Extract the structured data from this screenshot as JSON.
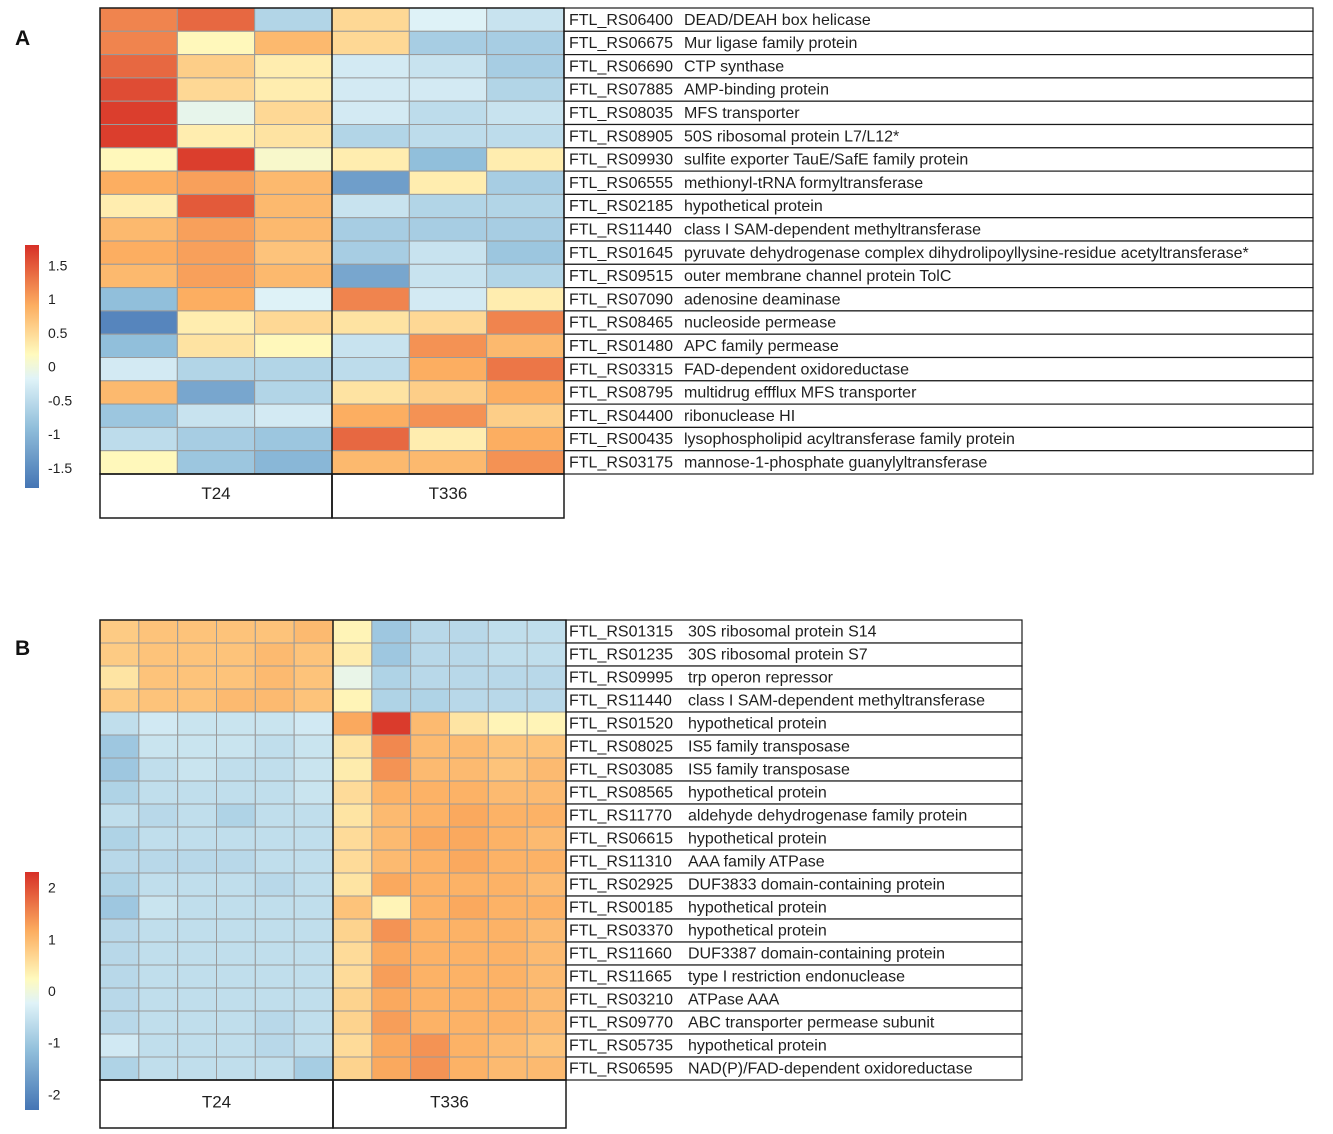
{
  "chart_data": [
    {
      "type": "heatmap",
      "panel": "A",
      "groups": [
        "T24",
        "T336"
      ],
      "replicates_per_group": 3,
      "colorbar": {
        "ticks": [
          1.5,
          1,
          0.5,
          0,
          -0.5,
          -1,
          -1.5
        ],
        "tick_labels": [
          "1.5",
          "1",
          "0.5",
          "0",
          "-0.5",
          "-1",
          "-1.5"
        ],
        "range": [
          -1.8,
          1.8
        ]
      },
      "rows": [
        {
          "id": "FTL_RS06400",
          "desc": "DEAD/DEAH box helicase",
          "values": [
            1.2,
            1.4,
            -0.6,
            0.5,
            -0.2,
            -0.4
          ]
        },
        {
          "id": "FTL_RS06675",
          "desc": "Mur ligase family protein",
          "values": [
            1.2,
            0.2,
            0.8,
            0.5,
            -0.7,
            -0.7
          ]
        },
        {
          "id": "FTL_RS06690",
          "desc": "CTP synthase",
          "values": [
            1.4,
            0.6,
            0.3,
            -0.3,
            -0.4,
            -0.7
          ]
        },
        {
          "id": "FTL_RS07885",
          "desc": "AMP-binding protein",
          "values": [
            1.6,
            0.5,
            0.3,
            -0.3,
            -0.3,
            -0.6
          ]
        },
        {
          "id": "FTL_RS08035",
          "desc": "MFS transporter",
          "values": [
            1.7,
            -0.1,
            0.5,
            -0.3,
            -0.5,
            -0.4
          ]
        },
        {
          "id": "FTL_RS08905",
          "desc": "50S ribosomal protein L7/L12*",
          "values": [
            1.7,
            0.3,
            0.4,
            -0.6,
            -0.5,
            -0.5
          ]
        },
        {
          "id": "FTL_RS09930",
          "desc": "sulfite exporter TauE/SafE family protein",
          "values": [
            0.2,
            1.7,
            0.1,
            0.3,
            -0.9,
            0.3
          ]
        },
        {
          "id": "FTL_RS06555",
          "desc": "methionyl-tRNA formyltransferase",
          "values": [
            0.9,
            1.0,
            0.8,
            -1.3,
            0.3,
            -0.7
          ]
        },
        {
          "id": "FTL_RS02185",
          "desc": "hypothetical protein",
          "values": [
            0.3,
            1.5,
            0.8,
            -0.4,
            -0.6,
            -0.6
          ]
        },
        {
          "id": "FTL_RS11440",
          "desc": "class I SAM-dependent methyltransferase",
          "values": [
            0.8,
            1.0,
            0.8,
            -0.7,
            -0.7,
            -0.7
          ]
        },
        {
          "id": "FTL_RS01645",
          "desc": "pyruvate dehydrogenase complex dihydrolipoyllysine-residue acetyltransferase*",
          "values": [
            0.9,
            1.0,
            0.7,
            -0.7,
            -0.4,
            -0.8
          ]
        },
        {
          "id": "FTL_RS09515",
          "desc": "outer membrane channel protein TolC",
          "values": [
            0.8,
            1.0,
            0.8,
            -1.2,
            -0.4,
            -0.6
          ]
        },
        {
          "id": "FTL_RS07090",
          "desc": "adenosine deaminase",
          "values": [
            -0.9,
            0.9,
            -0.2,
            1.2,
            -0.3,
            0.3
          ]
        },
        {
          "id": "FTL_RS08465",
          "desc": "nucleoside permease",
          "values": [
            -1.6,
            0.3,
            0.5,
            0.4,
            0.5,
            1.2
          ]
        },
        {
          "id": "FTL_RS01480",
          "desc": "APC family permease",
          "values": [
            -0.9,
            0.4,
            0.2,
            -0.4,
            1.1,
            0.8
          ]
        },
        {
          "id": "FTL_RS03315",
          "desc": "FAD-dependent oxidoreductase",
          "values": [
            -0.3,
            -0.6,
            -0.6,
            -0.5,
            0.9,
            1.3
          ]
        },
        {
          "id": "FTL_RS08795",
          "desc": "multidrug effflux MFS transporter",
          "values": [
            0.8,
            -1.2,
            -0.6,
            0.4,
            0.6,
            0.9
          ]
        },
        {
          "id": "FTL_RS04400",
          "desc": "ribonuclease HI",
          "values": [
            -0.8,
            -0.4,
            -0.3,
            0.9,
            1.1,
            0.6
          ]
        },
        {
          "id": "FTL_RS00435",
          "desc": "lysophospholipid acyltransferase family protein",
          "values": [
            -0.5,
            -0.7,
            -0.8,
            1.4,
            0.3,
            0.9
          ]
        },
        {
          "id": "FTL_RS03175",
          "desc": "mannose-1-phosphate guanylyltransferase",
          "values": [
            0.2,
            -0.8,
            -1.0,
            0.8,
            0.8,
            1.1
          ]
        }
      ]
    },
    {
      "type": "heatmap",
      "panel": "B",
      "groups": [
        "T24",
        "T336"
      ],
      "replicates_per_group": 6,
      "colorbar": {
        "ticks": [
          2,
          1,
          0,
          -1,
          -2
        ],
        "tick_labels": [
          "2",
          "1",
          "0",
          "-1",
          "-2"
        ],
        "range": [
          -2.3,
          2.3
        ]
      },
      "rows": [
        {
          "id": "FTL_RS01315",
          "desc": "30S ribosomal protein S14",
          "values": [
            0.8,
            0.9,
            0.9,
            0.9,
            0.9,
            1.0,
            0.3,
            -1.0,
            -0.7,
            -0.7,
            -0.6,
            -0.6
          ]
        },
        {
          "id": "FTL_RS01235",
          "desc": "30S ribosomal protein S7",
          "values": [
            0.8,
            0.9,
            0.9,
            0.9,
            1.0,
            0.9,
            0.4,
            -1.0,
            -0.7,
            -0.7,
            -0.6,
            -0.6
          ]
        },
        {
          "id": "FTL_RS09995",
          "desc": "trp operon repressor",
          "values": [
            0.5,
            0.9,
            0.9,
            0.9,
            1.0,
            0.9,
            -0.1,
            -0.8,
            -0.7,
            -0.7,
            -0.7,
            -0.7
          ]
        },
        {
          "id": "FTL_RS11440",
          "desc": "class I SAM-dependent methyltransferase",
          "values": [
            0.8,
            0.9,
            0.9,
            1.0,
            1.0,
            0.9,
            0.3,
            -0.8,
            -0.8,
            -0.7,
            -0.7,
            -0.7
          ]
        },
        {
          "id": "FTL_RS01520",
          "desc": "hypothetical protein",
          "values": [
            -0.6,
            -0.4,
            -0.5,
            -0.5,
            -0.5,
            -0.4,
            1.2,
            2.2,
            1.0,
            0.5,
            0.3,
            0.3
          ]
        },
        {
          "id": "FTL_RS08025",
          "desc": "IS5 family transposase",
          "values": [
            -1.0,
            -0.5,
            -0.5,
            -0.5,
            -0.6,
            -0.5,
            0.5,
            1.5,
            1.0,
            1.0,
            0.9,
            0.9
          ]
        },
        {
          "id": "FTL_RS03085",
          "desc": "IS5 family transposase",
          "values": [
            -1.0,
            -0.6,
            -0.5,
            -0.6,
            -0.6,
            -0.5,
            0.4,
            1.4,
            1.0,
            1.0,
            0.9,
            1.0
          ]
        },
        {
          "id": "FTL_RS08565",
          "desc": "hypothetical protein",
          "values": [
            -0.8,
            -0.6,
            -0.6,
            -0.6,
            -0.6,
            -0.5,
            0.6,
            1.1,
            1.1,
            1.1,
            1.0,
            1.0
          ]
        },
        {
          "id": "FTL_RS11770",
          "desc": "aldehyde dehydrogenase family protein",
          "values": [
            -0.6,
            -0.7,
            -0.6,
            -0.8,
            -0.6,
            -0.6,
            0.5,
            1.0,
            1.1,
            1.2,
            1.1,
            1.1
          ]
        },
        {
          "id": "FTL_RS06615",
          "desc": "hypothetical protein",
          "values": [
            -0.8,
            -0.6,
            -0.6,
            -0.6,
            -0.6,
            -0.6,
            0.6,
            1.0,
            1.2,
            1.2,
            1.1,
            1.0
          ]
        },
        {
          "id": "FTL_RS11310",
          "desc": "AAA family ATPase",
          "values": [
            -0.7,
            -0.7,
            -0.7,
            -0.7,
            -0.6,
            -0.6,
            0.6,
            1.0,
            1.1,
            1.2,
            1.1,
            1.1
          ]
        },
        {
          "id": "FTL_RS02925",
          "desc": "DUF3833 domain-containing protein",
          "values": [
            -0.8,
            -0.6,
            -0.6,
            -0.6,
            -0.7,
            -0.6,
            0.5,
            1.2,
            1.1,
            1.1,
            1.1,
            1.0
          ]
        },
        {
          "id": "FTL_RS00185",
          "desc": "hypothetical protein",
          "values": [
            -1.0,
            -0.5,
            -0.6,
            -0.6,
            -0.6,
            -0.6,
            0.9,
            0.3,
            1.1,
            1.2,
            1.1,
            1.1
          ]
        },
        {
          "id": "FTL_RS03370",
          "desc": "hypothetical protein",
          "values": [
            -0.7,
            -0.6,
            -0.6,
            -0.6,
            -0.6,
            -0.6,
            0.7,
            1.4,
            1.1,
            1.1,
            1.1,
            1.0
          ]
        },
        {
          "id": "FTL_RS11660",
          "desc": "DUF3387 domain-containing protein",
          "values": [
            -0.7,
            -0.6,
            -0.6,
            -0.6,
            -0.6,
            -0.6,
            0.6,
            1.2,
            1.1,
            1.1,
            1.1,
            1.0
          ]
        },
        {
          "id": "FTL_RS11665",
          "desc": "type I restriction endonuclease",
          "values": [
            -0.7,
            -0.6,
            -0.6,
            -0.6,
            -0.6,
            -0.6,
            0.6,
            1.3,
            1.1,
            1.1,
            1.1,
            1.0
          ]
        },
        {
          "id": "FTL_RS03210",
          "desc": "ATPase AAA",
          "values": [
            -0.7,
            -0.6,
            -0.6,
            -0.6,
            -0.6,
            -0.6,
            0.7,
            1.2,
            1.1,
            1.1,
            1.1,
            1.0
          ]
        },
        {
          "id": "FTL_RS09770",
          "desc": "ABC transporter permease subunit",
          "values": [
            -0.7,
            -0.6,
            -0.6,
            -0.6,
            -0.7,
            -0.6,
            0.7,
            1.3,
            1.1,
            1.1,
            1.1,
            1.0
          ]
        },
        {
          "id": "FTL_RS05735",
          "desc": "hypothetical protein",
          "values": [
            -0.4,
            -0.6,
            -0.6,
            -0.6,
            -0.7,
            -0.6,
            0.6,
            1.2,
            1.4,
            1.1,
            1.0,
            0.9
          ]
        },
        {
          "id": "FTL_RS06595",
          "desc": "NAD(P)/FAD-dependent oxidoreductase",
          "values": [
            -0.8,
            -0.6,
            -0.6,
            -0.6,
            -0.6,
            -0.9,
            0.7,
            1.2,
            1.4,
            1.1,
            1.0,
            1.0
          ]
        }
      ]
    }
  ]
}
